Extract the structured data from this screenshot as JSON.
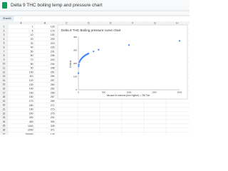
{
  "header": {
    "title": "Delta 9 THC boiling temp and pressure chart"
  },
  "sheet": {
    "tab": "Sheet1",
    "columns": [
      "A",
      "B",
      "C",
      "D",
      "E",
      "F",
      "G",
      "H"
    ],
    "rows": [
      [
        "1",
        "1",
        "126"
      ],
      [
        "2",
        "5",
        "179"
      ],
      [
        "3",
        "10",
        "192"
      ],
      [
        "4",
        "20",
        "209"
      ],
      [
        "5",
        "30",
        "219"
      ],
      [
        "6",
        "40",
        "226"
      ],
      [
        "7",
        "50",
        "231"
      ],
      [
        "8",
        "60",
        "236"
      ],
      [
        "9",
        "70",
        "240"
      ],
      [
        "10",
        "80",
        "244"
      ],
      [
        "11",
        "90",
        "248"
      ],
      [
        "12",
        "100",
        "251"
      ],
      [
        "13",
        "110",
        "254"
      ],
      [
        "14",
        "120",
        "257"
      ],
      [
        "15",
        "130",
        "260"
      ],
      [
        "16",
        "140",
        "262"
      ],
      [
        "17",
        "150",
        "265"
      ],
      [
        "18",
        "160",
        "267"
      ],
      [
        "19",
        "170",
        "269"
      ],
      [
        "20",
        "180",
        "271"
      ],
      [
        "21",
        "190",
        "273"
      ],
      [
        "22",
        "200",
        "275"
      ],
      [
        "23",
        "300",
        "291"
      ],
      [
        "24",
        "400",
        "304"
      ],
      [
        "25",
        "1000",
        "339"
      ],
      [
        "26",
        "2000",
        "371"
      ],
      [
        "27",
        "760000",
        "128"
      ]
    ]
  },
  "chart_data": {
    "type": "scatter",
    "title": "Delta 9 THC Boiling pressure curve chart",
    "x_label": "Vacuum in microns (mm Hg/torr) = 760 Torr",
    "y_label": "Celsius",
    "x": [
      1,
      5,
      10,
      20,
      30,
      40,
      50,
      60,
      70,
      80,
      90,
      100,
      110,
      120,
      130,
      140,
      150,
      160,
      170,
      180,
      190,
      200,
      300,
      400,
      1000,
      2000
    ],
    "values": [
      126,
      179,
      192,
      209,
      219,
      226,
      231,
      236,
      240,
      244,
      248,
      251,
      254,
      257,
      260,
      262,
      265,
      267,
      269,
      271,
      273,
      275,
      291,
      304,
      339,
      371
    ],
    "color": "#4285f4",
    "xlim": [
      0,
      2000
    ],
    "xticks": [
      0,
      500,
      1000,
      1500,
      2000
    ],
    "ylim": [
      0,
      400
    ],
    "yticks": [
      0,
      100,
      200,
      300,
      400
    ],
    "grid": false
  }
}
